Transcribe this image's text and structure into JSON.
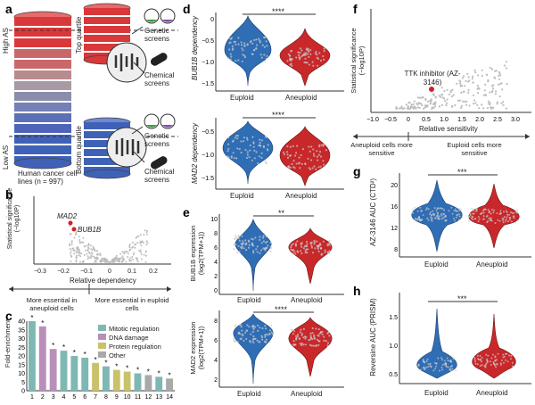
{
  "panels": {
    "a": {
      "letter": "a",
      "high_as": "High AS",
      "low_as": "Low AS",
      "top_quartile": "Top quartile",
      "bottom_quartile": "Bottom quartile",
      "genetic": "Genetic screens",
      "chemical": "Chemical screens",
      "cell_lines": "Human cancer cell lines (n = 997)"
    },
    "b": {
      "letter": "b",
      "ylabel": "Statistical significance (−log10P)",
      "xlabel": "Relative dependency",
      "xticks": [
        "−0.3",
        "−0.2",
        "−0.1",
        "0",
        "0.1",
        "0.2"
      ],
      "gene1": "MAD2",
      "gene2": "BUB1B",
      "arrow_left": "More essential in aneuploid cells",
      "arrow_right": "More essential in euploid cells"
    },
    "c": {
      "letter": "c",
      "ylabel": "Fold-enrichment",
      "yticks": [
        "0",
        "5",
        "10",
        "15",
        "20",
        "25",
        "30",
        "35",
        "40"
      ],
      "xticks": [
        "1",
        "2",
        "3",
        "4",
        "5",
        "6",
        "7",
        "8",
        "9",
        "10",
        "11",
        "12",
        "13",
        "14"
      ],
      "legend": [
        "Mitotic regulation",
        "DNA damage",
        "Protein regulation",
        "Other"
      ],
      "legend_colors": [
        "#7fb8b3",
        "#b98fba",
        "#c9c26a",
        "#a9a9a9"
      ],
      "bar_colors": [
        "#7fb8b3",
        "#b98fba",
        "#b98fba",
        "#7fb8b3",
        "#7fb8b3",
        "#7fb8b3",
        "#c9c26a",
        "#7fb8b3",
        "#c9c26a",
        "#c9c26a",
        "#7fb8b3",
        "#a9a9a9",
        "#7fb8b3",
        "#a9a9a9"
      ],
      "star": "*"
    },
    "d": {
      "letter": "d",
      "top_ylabel": "BUB1B dependency",
      "bottom_ylabel": "MAD2 dependency",
      "top_yticks": [
        "0",
        "−0.5",
        "−1.0",
        "−1.5"
      ],
      "bottom_yticks": [
        "−0.5",
        "−1.0",
        "−1.5"
      ],
      "groups": [
        "Euploid",
        "Aneuploid"
      ],
      "sig": "****"
    },
    "e": {
      "letter": "e",
      "top_ylabel": "BUB1B expression (log2(TPM+1))",
      "bottom_ylabel": "MAD2 expression (log2(TPM+1))",
      "top_yticks": [
        "10",
        "8",
        "6",
        "4",
        "2",
        "0"
      ],
      "bottom_yticks": [
        "8",
        "6",
        "4",
        "2"
      ],
      "groups": [
        "Euploid",
        "Aneuploid"
      ],
      "sig_top": "**",
      "sig_bottom": "****"
    },
    "f": {
      "letter": "f",
      "ylabel": "Statistical significance (−log10P)",
      "xlabel": "Relative sensitivity",
      "xticks": [
        "−1.0",
        "−0.5",
        "0",
        "0.5",
        "1.0",
        "1.5",
        "2.0",
        "2.5",
        "3.0"
      ],
      "annotation": "TTK inhibitor (AZ-3146)",
      "arrow_left": "Aneuploid cells more sensitive",
      "arrow_right": "Euploid cells more sensitive"
    },
    "g": {
      "letter": "g",
      "ylabel": "AZ-3146 AUC (CTD²)",
      "yticks": [
        "20",
        "16",
        "12",
        "8"
      ],
      "groups": [
        "Euploid",
        "Aneuploid"
      ],
      "sig": "***"
    },
    "h": {
      "letter": "h",
      "ylabel": "Reversine AUC (PRISM)",
      "yticks": [
        "1.5",
        "1.0",
        "0.5"
      ],
      "groups": [
        "Euploid",
        "Aneuploid"
      ],
      "sig": "***"
    }
  },
  "chart_data": [
    {
      "type": "bar",
      "panel": "c",
      "categories": [
        "1",
        "2",
        "3",
        "4",
        "5",
        "6",
        "7",
        "8",
        "9",
        "10",
        "11",
        "12",
        "13",
        "14"
      ],
      "values": [
        40,
        37,
        24,
        23,
        20,
        19,
        16,
        14,
        12,
        11,
        10,
        9,
        8,
        7
      ],
      "ylabel": "Fold-enrichment",
      "ylim": [
        0,
        40
      ]
    }
  ],
  "colors": {
    "euploid": "#2f6db5",
    "aneuploid": "#c8282a",
    "red_stack": "#d9383a",
    "blue_stack": "#3f62b8"
  }
}
